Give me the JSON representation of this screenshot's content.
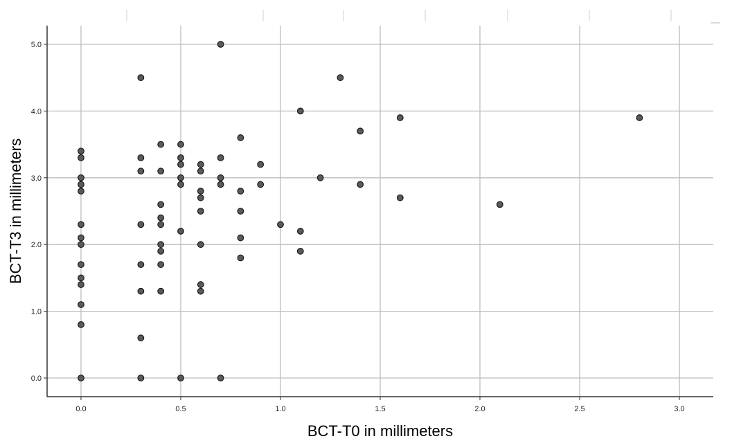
{
  "chart_data": {
    "type": "scatter",
    "title": "",
    "xlabel": "BCT-T0 in millimeters",
    "ylabel": "BCT-T3 in millimeters",
    "xlim": [
      -0.17,
      3.17
    ],
    "ylim": [
      -0.28,
      5.28
    ],
    "x_ticks": [
      0.0,
      0.5,
      1.0,
      1.5,
      2.0,
      2.5,
      3.0
    ],
    "x_tick_labels": [
      "0.0",
      "0.5",
      "1.0",
      "1.5",
      "2.0",
      "2.5",
      "3.0"
    ],
    "y_ticks": [
      0.0,
      1.0,
      2.0,
      3.0,
      4.0,
      5.0
    ],
    "y_tick_labels": [
      "0.0",
      "1.0",
      "2.0",
      "3.0",
      "4.0",
      "5.0"
    ],
    "grid": true,
    "colors": {
      "marker_fill": "#5a5a5a",
      "marker_edge": "#1a1a1a",
      "grid": "#bdbdbd",
      "axis": "#333333"
    },
    "points": [
      [
        0.0,
        3.4
      ],
      [
        0.0,
        3.3
      ],
      [
        0.0,
        3.0
      ],
      [
        0.0,
        2.9
      ],
      [
        0.0,
        2.8
      ],
      [
        0.0,
        2.3
      ],
      [
        0.0,
        2.1
      ],
      [
        0.0,
        2.0
      ],
      [
        0.0,
        1.7
      ],
      [
        0.0,
        1.5
      ],
      [
        0.0,
        1.4
      ],
      [
        0.0,
        1.1
      ],
      [
        0.0,
        0.8
      ],
      [
        0.0,
        0.0
      ],
      [
        0.3,
        4.5
      ],
      [
        0.3,
        3.3
      ],
      [
        0.3,
        3.1
      ],
      [
        0.3,
        2.3
      ],
      [
        0.3,
        1.7
      ],
      [
        0.3,
        1.3
      ],
      [
        0.3,
        0.6
      ],
      [
        0.3,
        0.0
      ],
      [
        0.4,
        3.5
      ],
      [
        0.4,
        3.1
      ],
      [
        0.4,
        2.6
      ],
      [
        0.4,
        2.4
      ],
      [
        0.4,
        2.3
      ],
      [
        0.4,
        2.0
      ],
      [
        0.4,
        1.9
      ],
      [
        0.4,
        1.7
      ],
      [
        0.4,
        1.3
      ],
      [
        0.5,
        3.5
      ],
      [
        0.5,
        3.3
      ],
      [
        0.5,
        3.2
      ],
      [
        0.5,
        3.0
      ],
      [
        0.5,
        2.9
      ],
      [
        0.5,
        2.2
      ],
      [
        0.5,
        0.0
      ],
      [
        0.6,
        3.2
      ],
      [
        0.6,
        3.1
      ],
      [
        0.6,
        2.8
      ],
      [
        0.6,
        2.7
      ],
      [
        0.6,
        2.5
      ],
      [
        0.6,
        2.0
      ],
      [
        0.6,
        1.4
      ],
      [
        0.6,
        1.3
      ],
      [
        0.7,
        5.0
      ],
      [
        0.7,
        3.3
      ],
      [
        0.7,
        3.0
      ],
      [
        0.7,
        2.9
      ],
      [
        0.7,
        0.0
      ],
      [
        0.8,
        3.6
      ],
      [
        0.8,
        2.8
      ],
      [
        0.8,
        2.5
      ],
      [
        0.8,
        2.1
      ],
      [
        0.8,
        1.8
      ],
      [
        0.9,
        3.2
      ],
      [
        0.9,
        2.9
      ],
      [
        1.0,
        2.3
      ],
      [
        1.1,
        4.0
      ],
      [
        1.1,
        2.2
      ],
      [
        1.1,
        1.9
      ],
      [
        1.2,
        3.0
      ],
      [
        1.3,
        4.5
      ],
      [
        1.4,
        3.7
      ],
      [
        1.4,
        2.9
      ],
      [
        1.6,
        3.9
      ],
      [
        1.6,
        2.7
      ],
      [
        2.1,
        2.6
      ],
      [
        2.8,
        3.9
      ]
    ]
  }
}
